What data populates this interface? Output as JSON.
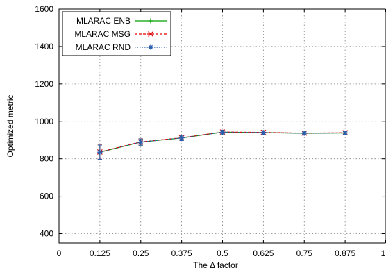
{
  "chart_data": {
    "type": "line",
    "xlabel": "The Δ factor",
    "ylabel": "Optimized metric",
    "xlim": [
      0,
      1
    ],
    "ylim": [
      350,
      1600
    ],
    "xticks": [
      "0",
      "0.125",
      "0.25",
      "0.375",
      "0.5",
      "0.625",
      "0.75",
      "0.875",
      "1"
    ],
    "yticks": [
      "400",
      "600",
      "800",
      "1000",
      "1200",
      "1400",
      "1600"
    ],
    "grid": true,
    "legend_position": "top-left",
    "x": [
      0.125,
      0.25,
      0.375,
      0.5,
      0.625,
      0.75,
      0.875
    ],
    "series": [
      {
        "name": "MLARAC ENB",
        "color": "#00a000",
        "marker": "plus",
        "line": "solid",
        "values": [
          835,
          889,
          911,
          942,
          940,
          936,
          938
        ],
        "errors": [
          38,
          17,
          14,
          10,
          9,
          7,
          7
        ]
      },
      {
        "name": "MLARAC MSG",
        "color": "#e00000",
        "marker": "cross",
        "line": "dashed",
        "values": [
          836,
          890,
          912,
          943,
          941,
          937,
          939
        ],
        "errors": [
          38,
          17,
          14,
          10,
          9,
          7,
          7
        ]
      },
      {
        "name": "MLARAC RND",
        "color": "#2a5fb0",
        "marker": "star",
        "line": "dotted",
        "values": [
          835,
          889,
          911,
          942,
          940,
          936,
          938
        ],
        "errors": [
          38,
          17,
          14,
          10,
          9,
          7,
          7
        ]
      }
    ]
  }
}
